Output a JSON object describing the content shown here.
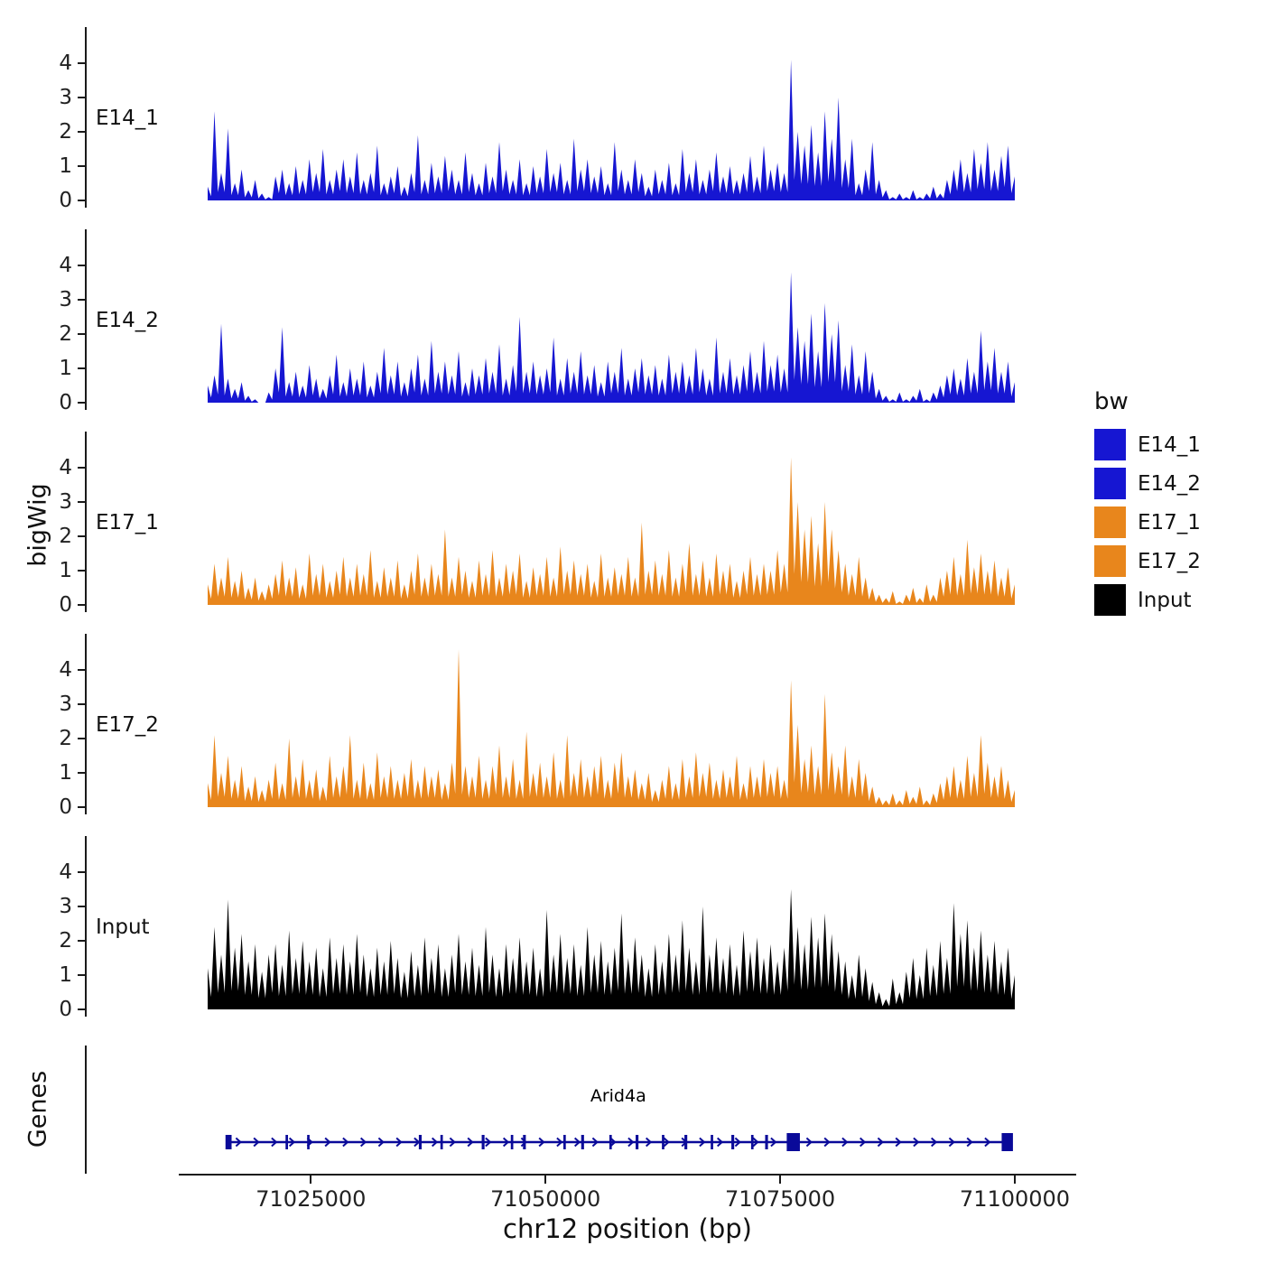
{
  "chart_data": {
    "type": "area",
    "title": "",
    "xlabel": "chr12 position (bp)",
    "ylabel": "bigWig",
    "x_domain": [
      71014000,
      71100000
    ],
    "x_ticks": [
      71025000,
      71050000,
      71075000,
      71100000
    ],
    "y_ticks": [
      0,
      1,
      2,
      3,
      4
    ],
    "y_domain": [
      0,
      4.7
    ],
    "grid": false,
    "legend": {
      "title": "bw",
      "position": "right",
      "entries": [
        {
          "label": "E14_1",
          "color": "#1616D2"
        },
        {
          "label": "E14_2",
          "color": "#1616D2"
        },
        {
          "label": "E17_1",
          "color": "#E8861C"
        },
        {
          "label": "E17_2",
          "color": "#E8861C"
        },
        {
          "label": "Input",
          "color": "#000000"
        }
      ]
    },
    "tracks": [
      {
        "name": "E14_1",
        "color": "#1616D2",
        "values": [
          0.4,
          2.6,
          0.8,
          2.1,
          0.5,
          0.9,
          0.3,
          0.6,
          0.2,
          0.1,
          0.7,
          0.9,
          0.5,
          1.0,
          0.6,
          1.2,
          0.8,
          1.5,
          0.6,
          0.9,
          1.2,
          0.7,
          1.4,
          0.6,
          0.8,
          1.6,
          0.5,
          0.7,
          1.0,
          0.4,
          0.8,
          1.9,
          0.6,
          1.1,
          0.7,
          1.3,
          0.9,
          0.6,
          1.4,
          0.8,
          0.5,
          1.1,
          0.7,
          1.7,
          0.9,
          0.6,
          1.2,
          0.5,
          1.0,
          0.7,
          1.5,
          0.8,
          1.1,
          0.6,
          1.8,
          0.9,
          1.2,
          0.7,
          1.0,
          0.5,
          1.7,
          0.9,
          0.6,
          1.2,
          0.8,
          0.4,
          0.9,
          0.6,
          1.1,
          0.5,
          1.5,
          0.8,
          1.2,
          0.6,
          0.9,
          1.4,
          0.7,
          1.0,
          0.6,
          0.8,
          1.3,
          0.7,
          1.6,
          0.9,
          1.1,
          0.8,
          4.1,
          2.0,
          1.6,
          2.2,
          1.4,
          2.6,
          1.8,
          3.0,
          1.2,
          1.8,
          0.5,
          0.9,
          1.7,
          0.6,
          0.3,
          0.1,
          0.2,
          0.1,
          0.3,
          0.1,
          0.2,
          0.4,
          0.2,
          0.6,
          0.9,
          1.2,
          0.8,
          1.5,
          1.1,
          1.7,
          0.9,
          1.3,
          1.6,
          0.7
        ]
      },
      {
        "name": "E14_2",
        "color": "#1616D2",
        "values": [
          0.5,
          0.8,
          2.3,
          0.7,
          0.4,
          0.6,
          0.2,
          0.1,
          0.0,
          0.3,
          1.0,
          2.2,
          0.6,
          0.9,
          0.5,
          1.1,
          0.7,
          0.4,
          0.8,
          1.4,
          0.6,
          1.0,
          0.7,
          1.2,
          0.5,
          0.9,
          1.6,
          0.8,
          1.2,
          0.6,
          1.0,
          1.4,
          0.7,
          1.8,
          0.9,
          1.2,
          0.8,
          1.5,
          0.6,
          1.0,
          0.8,
          1.3,
          0.9,
          1.7,
          0.7,
          1.1,
          2.5,
          0.9,
          1.2,
          0.8,
          1.0,
          1.9,
          0.7,
          1.3,
          0.9,
          1.5,
          0.8,
          1.1,
          0.6,
          1.2,
          0.9,
          1.6,
          0.7,
          1.0,
          1.3,
          0.8,
          1.1,
          0.7,
          1.4,
          0.9,
          1.2,
          0.8,
          1.6,
          1.0,
          0.7,
          1.9,
          0.9,
          1.3,
          0.8,
          1.1,
          1.5,
          0.9,
          1.8,
          1.1,
          1.4,
          1.0,
          3.8,
          2.2,
          1.8,
          2.6,
          1.5,
          2.9,
          2.0,
          2.4,
          1.1,
          1.7,
          0.8,
          1.5,
          0.9,
          0.4,
          0.2,
          0.1,
          0.3,
          0.1,
          0.2,
          0.4,
          0.1,
          0.3,
          0.5,
          0.8,
          1.0,
          0.7,
          1.3,
          0.9,
          2.1,
          1.2,
          1.6,
          0.9,
          1.2,
          0.6
        ]
      },
      {
        "name": "E17_1",
        "color": "#E8861C",
        "values": [
          0.6,
          1.2,
          0.8,
          1.4,
          0.7,
          1.0,
          0.5,
          0.8,
          0.4,
          0.6,
          0.9,
          1.3,
          0.8,
          1.1,
          0.6,
          1.5,
          0.9,
          1.2,
          0.7,
          1.0,
          1.4,
          0.8,
          1.2,
          0.9,
          1.6,
          0.7,
          1.1,
          0.8,
          1.3,
          0.6,
          1.0,
          1.5,
          0.8,
          1.2,
          0.9,
          2.2,
          0.8,
          1.4,
          1.0,
          0.7,
          1.3,
          0.9,
          1.6,
          0.8,
          1.2,
          1.0,
          1.5,
          0.7,
          1.1,
          0.9,
          1.4,
          0.8,
          1.7,
          1.0,
          1.3,
          0.9,
          1.2,
          0.7,
          1.5,
          0.8,
          1.1,
          0.9,
          1.4,
          0.8,
          2.4,
          1.0,
          1.3,
          0.9,
          1.6,
          0.8,
          1.2,
          1.8,
          0.9,
          1.3,
          0.8,
          1.5,
          1.0,
          1.2,
          0.7,
          1.0,
          1.4,
          0.9,
          1.2,
          1.0,
          1.6,
          1.2,
          4.3,
          3.0,
          2.2,
          2.6,
          1.8,
          3.0,
          2.2,
          1.6,
          1.2,
          0.9,
          1.4,
          0.8,
          0.5,
          0.3,
          0.2,
          0.4,
          0.1,
          0.3,
          0.5,
          0.2,
          0.6,
          0.3,
          0.8,
          1.0,
          1.4,
          0.9,
          1.9,
          1.1,
          1.5,
          1.0,
          1.3,
          0.8,
          1.1,
          0.6
        ]
      },
      {
        "name": "E17_2",
        "color": "#E8861C",
        "values": [
          0.7,
          2.1,
          1.0,
          1.5,
          0.8,
          1.2,
          0.6,
          0.9,
          0.5,
          0.8,
          1.3,
          0.7,
          2.0,
          0.9,
          1.4,
          0.8,
          1.1,
          0.6,
          1.5,
          0.9,
          1.2,
          2.1,
          0.8,
          1.3,
          0.7,
          1.6,
          0.9,
          1.2,
          0.8,
          1.0,
          1.4,
          0.8,
          1.2,
          0.9,
          1.1,
          0.7,
          1.3,
          4.6,
          1.2,
          0.9,
          1.5,
          0.8,
          1.2,
          1.8,
          0.9,
          1.4,
          0.8,
          2.2,
          1.0,
          1.3,
          0.9,
          1.6,
          0.8,
          2.1,
          1.0,
          1.4,
          0.9,
          1.2,
          1.5,
          0.8,
          1.3,
          1.6,
          0.9,
          1.1,
          0.7,
          1.0,
          0.5,
          0.8,
          1.2,
          0.7,
          1.4,
          0.9,
          1.6,
          1.0,
          1.3,
          0.8,
          1.1,
          0.9,
          1.5,
          0.7,
          1.2,
          0.9,
          1.4,
          1.0,
          1.2,
          0.8,
          3.7,
          2.4,
          1.4,
          1.8,
          1.2,
          3.3,
          1.6,
          1.2,
          1.8,
          0.9,
          1.4,
          1.0,
          0.6,
          0.3,
          0.2,
          0.4,
          0.2,
          0.5,
          0.3,
          0.6,
          0.2,
          0.4,
          0.7,
          0.9,
          1.2,
          0.8,
          1.5,
          1.0,
          2.1,
          1.3,
          0.9,
          1.2,
          0.8,
          0.5
        ]
      },
      {
        "name": "Input",
        "color": "#000000",
        "values": [
          1.2,
          2.4,
          1.6,
          3.2,
          1.8,
          2.2,
          1.4,
          1.9,
          1.1,
          1.6,
          1.9,
          1.3,
          2.3,
          1.5,
          2.0,
          1.4,
          1.8,
          1.2,
          2.1,
          1.5,
          1.9,
          1.4,
          2.2,
          1.6,
          1.2,
          1.8,
          1.4,
          2.0,
          1.5,
          1.1,
          1.7,
          1.3,
          2.1,
          1.5,
          1.9,
          1.2,
          1.6,
          2.2,
          1.4,
          1.8,
          1.3,
          2.4,
          1.6,
          1.2,
          1.9,
          1.5,
          2.1,
          1.4,
          1.8,
          1.2,
          2.9,
          1.6,
          2.2,
          1.5,
          1.9,
          1.3,
          2.4,
          1.6,
          2.0,
          1.4,
          1.8,
          2.8,
          1.5,
          2.1,
          1.6,
          1.2,
          1.9,
          1.4,
          2.2,
          1.6,
          2.6,
          1.8,
          1.4,
          3.0,
          1.6,
          2.1,
          1.5,
          1.9,
          1.3,
          2.3,
          1.7,
          2.1,
          1.5,
          1.9,
          1.4,
          1.8,
          3.5,
          2.4,
          1.9,
          2.7,
          2.1,
          2.8,
          2.2,
          1.7,
          1.4,
          1.0,
          1.6,
          1.2,
          0.8,
          0.5,
          0.3,
          0.9,
          0.5,
          1.1,
          1.5,
          1.0,
          1.8,
          1.3,
          2.0,
          1.5,
          3.1,
          2.2,
          2.6,
          1.8,
          2.3,
          1.6,
          2.0,
          1.4,
          1.8,
          1.0
        ]
      }
    ],
    "genes_panel": {
      "label": "Genes",
      "gene": {
        "name": "Arid4a",
        "start": 71016000,
        "end": 71099500,
        "strand": "+",
        "color": "#0A0A99",
        "exons": [
          [
            71015900,
            650,
            16
          ],
          [
            71022300,
            260,
            16
          ],
          [
            71024600,
            260,
            16
          ],
          [
            71036500,
            300,
            16
          ],
          [
            71038800,
            260,
            16
          ],
          [
            71043200,
            300,
            16
          ],
          [
            71046300,
            260,
            16
          ],
          [
            71047600,
            300,
            16
          ],
          [
            71051900,
            260,
            16
          ],
          [
            71053800,
            300,
            16
          ],
          [
            71056800,
            260,
            16
          ],
          [
            71059600,
            300,
            16
          ],
          [
            71062400,
            260,
            16
          ],
          [
            71064800,
            300,
            16
          ],
          [
            71067600,
            260,
            16
          ],
          [
            71069800,
            300,
            16
          ],
          [
            71071900,
            260,
            16
          ],
          [
            71073400,
            300,
            16
          ],
          [
            71075700,
            1400,
            20
          ],
          [
            71098600,
            1200,
            20
          ]
        ]
      }
    }
  }
}
